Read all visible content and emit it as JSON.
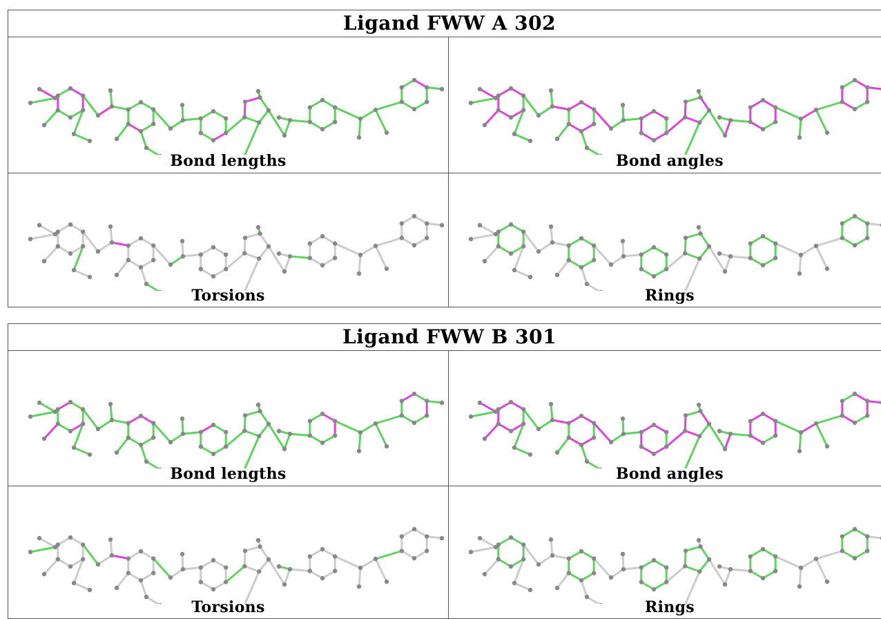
{
  "panels": [
    {
      "title": "Ligand FWW A 302",
      "cells": [
        {
          "caption": "Bond lengths",
          "mode": "lengths"
        },
        {
          "caption": "Bond angles",
          "mode": "angles"
        },
        {
          "caption": "Torsions",
          "mode": "torsions"
        },
        {
          "caption": "Rings",
          "mode": "rings"
        }
      ]
    },
    {
      "title": "Ligand FWW B 301",
      "cells": [
        {
          "caption": "Bond lengths",
          "mode": "lengths"
        },
        {
          "caption": "Bond angles",
          "mode": "angles"
        },
        {
          "caption": "Torsions",
          "mode": "torsions"
        },
        {
          "caption": "Rings",
          "mode": "rings"
        }
      ]
    }
  ],
  "colors": {
    "ok_bond": "#5fd35f",
    "outlier_bond": "#e040e0",
    "neutral_bond": "#cccccc",
    "atom": "#888888",
    "border": "#555555"
  }
}
